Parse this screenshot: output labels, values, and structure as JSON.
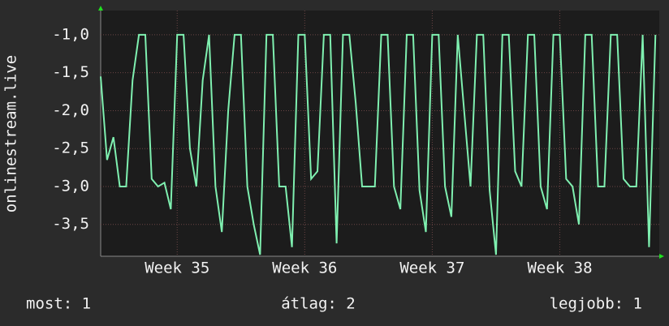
{
  "chart_data": {
    "type": "line",
    "y_label": "onlinestream.live",
    "x": [
      34.4,
      34.45,
      34.5,
      34.55,
      34.6,
      34.65,
      34.7,
      34.75,
      34.8,
      34.85,
      34.9,
      34.95,
      35.0,
      35.05,
      35.1,
      35.15,
      35.2,
      35.25,
      35.3,
      35.35,
      35.4,
      35.45,
      35.5,
      35.55,
      35.6,
      35.65,
      35.7,
      35.75,
      35.8,
      35.85,
      35.9,
      35.95,
      36.0,
      36.05,
      36.1,
      36.15,
      36.2,
      36.25,
      36.3,
      36.35,
      36.4,
      36.45,
      36.5,
      36.55,
      36.6,
      36.65,
      36.7,
      36.75,
      36.8,
      36.85,
      36.9,
      36.95,
      37.0,
      37.05,
      37.1,
      37.15,
      37.2,
      37.25,
      37.3,
      37.35,
      37.4,
      37.45,
      37.5,
      37.55,
      37.6,
      37.65,
      37.7,
      37.75,
      37.8,
      37.85,
      37.9,
      37.95,
      38.0,
      38.05,
      38.1,
      38.15,
      38.2,
      38.25,
      38.3,
      38.35,
      38.4,
      38.45,
      38.5,
      38.55,
      38.6,
      38.65,
      38.7,
      38.75
    ],
    "series": [
      {
        "color": "#7ff0b0",
        "values": [
          -1.55,
          -2.65,
          -2.35,
          -3.0,
          -3.0,
          -1.6,
          -1.0,
          -1.0,
          -2.9,
          -3.0,
          -2.95,
          -3.3,
          -1.0,
          -1.0,
          -2.5,
          -3.0,
          -1.6,
          -1.0,
          -3.0,
          -3.6,
          -2.0,
          -1.0,
          -1.0,
          -3.0,
          -3.5,
          -3.9,
          -1.0,
          -1.0,
          -3.0,
          -3.0,
          -3.8,
          -1.0,
          -1.0,
          -2.9,
          -2.8,
          -1.0,
          -1.0,
          -3.75,
          -1.0,
          -1.0,
          -1.9,
          -3.0,
          -3.0,
          -3.0,
          -1.0,
          -1.0,
          -3.0,
          -3.3,
          -1.0,
          -1.0,
          -3.05,
          -3.6,
          -1.0,
          -1.0,
          -3.0,
          -3.4,
          -1.0,
          -2.0,
          -3.0,
          -1.0,
          -1.0,
          -3.05,
          -3.9,
          -1.0,
          -1.0,
          -2.8,
          -3.0,
          -1.0,
          -1.0,
          -3.0,
          -3.3,
          -1.0,
          -1.0,
          -2.9,
          -3.0,
          -3.5,
          -1.0,
          -1.0,
          -3.0,
          -3.0,
          -1.0,
          -1.0,
          -2.9,
          -3.0,
          -3.0,
          -1.0,
          -3.8,
          -1.0
        ]
      }
    ],
    "xlim": [
      34.4,
      38.78
    ],
    "xticks": [
      {
        "value": 35,
        "label": "Week 35"
      },
      {
        "value": 36,
        "label": "Week 36"
      },
      {
        "value": 37,
        "label": "Week 37"
      },
      {
        "value": 38,
        "label": "Week 38"
      }
    ],
    "ylim": [
      -3.92,
      -0.68
    ],
    "yticks": [
      {
        "value": -1.0,
        "label": "-1,0"
      },
      {
        "value": -1.5,
        "label": "-1,5"
      },
      {
        "value": -2.0,
        "label": "-2,0"
      },
      {
        "value": -2.5,
        "label": "-2,5"
      },
      {
        "value": -3.0,
        "label": "-3,0"
      },
      {
        "value": -3.5,
        "label": "-3,5"
      }
    ],
    "grid": true,
    "stats": [
      "most: 1",
      "átlag: 2",
      "legjobb: 1"
    ]
  }
}
